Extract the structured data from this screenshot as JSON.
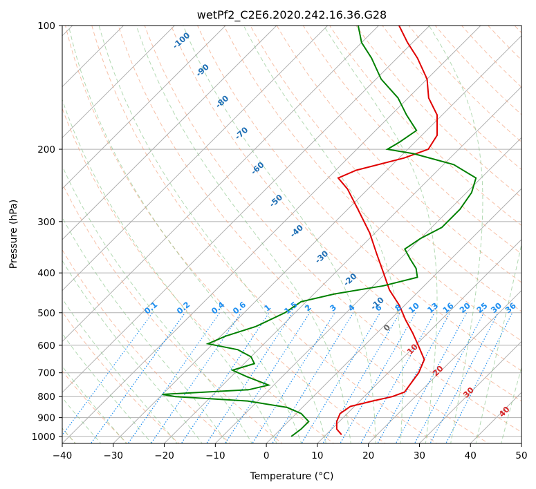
{
  "chart_data": {
    "type": "line",
    "subtype": "skew-T log-P diagram",
    "title": "wetPf2_C2E6.2020.242.16.36.G28",
    "xlabel": "Temperature (°C)",
    "ylabel": "Pressure (hPa)",
    "xlim": [
      -40,
      50
    ],
    "ylim": [
      1040,
      100
    ],
    "y_scale": "log",
    "x_ticks": [
      -40,
      -30,
      -20,
      -10,
      0,
      10,
      20,
      30,
      40,
      50
    ],
    "y_ticks": [
      1000,
      900,
      800,
      700,
      600,
      500,
      400,
      300,
      200,
      100
    ],
    "grid": true,
    "series": [
      {
        "color": "#e00000",
        "values_label": "temperature",
        "points": [
          {
            "p": 990,
            "t": 13
          },
          {
            "p": 960,
            "t": 11
          },
          {
            "p": 920,
            "t": 9.5
          },
          {
            "p": 880,
            "t": 8.6
          },
          {
            "p": 845,
            "t": 9.2
          },
          {
            "p": 820,
            "t": 12.5
          },
          {
            "p": 800,
            "t": 15.5
          },
          {
            "p": 780,
            "t": 17
          },
          {
            "p": 740,
            "t": 16.5
          },
          {
            "p": 700,
            "t": 16
          },
          {
            "p": 650,
            "t": 14.5
          },
          {
            "p": 600,
            "t": 10.5
          },
          {
            "p": 560,
            "t": 7
          },
          {
            "p": 520,
            "t": 3
          },
          {
            "p": 480,
            "t": -1
          },
          {
            "p": 440,
            "t": -6
          },
          {
            "p": 400,
            "t": -10.5
          },
          {
            "p": 360,
            "t": -15.5
          },
          {
            "p": 320,
            "t": -21
          },
          {
            "p": 280,
            "t": -28
          },
          {
            "p": 250,
            "t": -34
          },
          {
            "p": 235,
            "t": -38
          },
          {
            "p": 225,
            "t": -36
          },
          {
            "p": 210,
            "t": -29
          },
          {
            "p": 200,
            "t": -26
          },
          {
            "p": 185,
            "t": -27
          },
          {
            "p": 165,
            "t": -31
          },
          {
            "p": 150,
            "t": -36
          },
          {
            "p": 135,
            "t": -40
          },
          {
            "p": 120,
            "t": -46
          },
          {
            "p": 110,
            "t": -51
          },
          {
            "p": 100,
            "t": -56
          }
        ]
      },
      {
        "color": "#008000",
        "values_label": "dewpoint",
        "points": [
          {
            "p": 1000,
            "t": 3.5
          },
          {
            "p": 960,
            "t": 4
          },
          {
            "p": 920,
            "t": 4
          },
          {
            "p": 880,
            "t": 1
          },
          {
            "p": 850,
            "t": -3
          },
          {
            "p": 820,
            "t": -12
          },
          {
            "p": 800,
            "t": -27
          },
          {
            "p": 790,
            "t": -30
          },
          {
            "p": 770,
            "t": -14
          },
          {
            "p": 750,
            "t": -11
          },
          {
            "p": 715,
            "t": -17
          },
          {
            "p": 690,
            "t": -21
          },
          {
            "p": 665,
            "t": -18
          },
          {
            "p": 640,
            "t": -20
          },
          {
            "p": 615,
            "t": -24
          },
          {
            "p": 595,
            "t": -31
          },
          {
            "p": 570,
            "t": -29
          },
          {
            "p": 540,
            "t": -25
          },
          {
            "p": 500,
            "t": -22
          },
          {
            "p": 470,
            "t": -21
          },
          {
            "p": 450,
            "t": -16
          },
          {
            "p": 430,
            "t": -8
          },
          {
            "p": 410,
            "t": -3
          },
          {
            "p": 390,
            "t": -5
          },
          {
            "p": 370,
            "t": -8
          },
          {
            "p": 350,
            "t": -11
          },
          {
            "p": 330,
            "t": -10
          },
          {
            "p": 310,
            "t": -8
          },
          {
            "p": 280,
            "t": -8
          },
          {
            "p": 255,
            "t": -9
          },
          {
            "p": 235,
            "t": -11
          },
          {
            "p": 218,
            "t": -18
          },
          {
            "p": 205,
            "t": -28
          },
          {
            "p": 200,
            "t": -34
          },
          {
            "p": 192,
            "t": -33
          },
          {
            "p": 180,
            "t": -32
          },
          {
            "p": 165,
            "t": -37
          },
          {
            "p": 150,
            "t": -42
          },
          {
            "p": 135,
            "t": -49
          },
          {
            "p": 120,
            "t": -55
          },
          {
            "p": 110,
            "t": -60
          },
          {
            "p": 100,
            "t": -64
          }
        ]
      }
    ],
    "dry_adiabat_labels": [
      "-100",
      "-90",
      "-80",
      "-70",
      "-60",
      "-50",
      "-40",
      "-30",
      "-20",
      "-10"
    ],
    "moist_adiabat_labels": [
      "0",
      "10",
      "20",
      "30",
      "40"
    ],
    "mixing_ratio_labels": [
      "0.1",
      "0.2",
      "0.4",
      "0.6",
      "1",
      "1.5",
      "2",
      "3",
      "4",
      "6",
      "8",
      "10",
      "13",
      "16",
      "20",
      "25",
      "30",
      "36"
    ],
    "mixing_ratio_values": [
      0.1,
      0.2,
      0.4,
      0.6,
      1,
      1.5,
      2,
      3,
      4,
      6,
      8,
      10,
      13,
      16,
      20,
      25,
      30,
      36
    ]
  }
}
